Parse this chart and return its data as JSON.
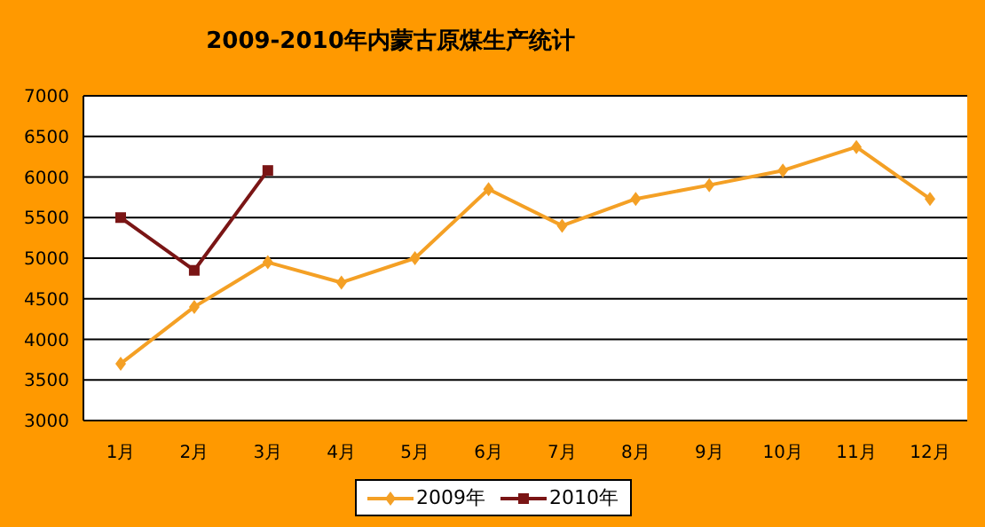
{
  "chart_data": {
    "type": "line",
    "title": "2009-2010年内蒙古原煤生产统计",
    "categories": [
      "1月",
      "2月",
      "3月",
      "4月",
      "5月",
      "6月",
      "7月",
      "8月",
      "9月",
      "10月",
      "11月",
      "12月"
    ],
    "series": [
      {
        "name": "2009年",
        "color": "#f4a025",
        "marker": "diamond",
        "values": [
          3700,
          4400,
          4950,
          4700,
          5000,
          5850,
          5400,
          5730,
          5900,
          6080,
          6370,
          5730
        ]
      },
      {
        "name": "2010年",
        "color": "#7a1515",
        "marker": "square",
        "values": [
          5500,
          4850,
          6080,
          null,
          null,
          null,
          null,
          null,
          null,
          null,
          null,
          null
        ]
      }
    ],
    "ylim": [
      3000,
      7000
    ],
    "yticks": [
      3000,
      3500,
      4000,
      4500,
      5000,
      5500,
      6000,
      6500,
      7000
    ],
    "grid": "y",
    "legend": "bottom"
  }
}
